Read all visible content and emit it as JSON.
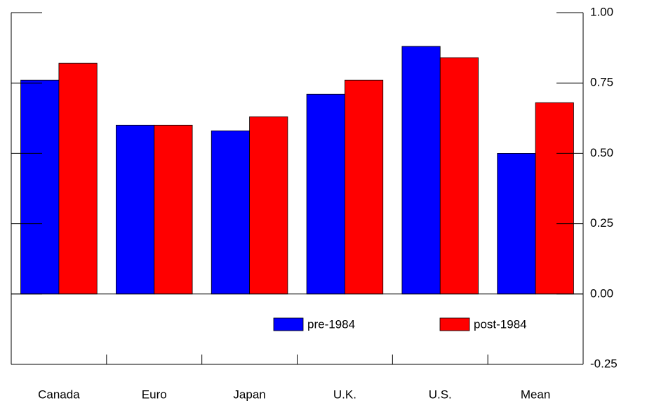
{
  "chart_data": {
    "type": "bar",
    "categories": [
      "Canada",
      "Euro",
      "Japan",
      "U.K.",
      "U.S.",
      "Mean"
    ],
    "series": [
      {
        "name": "pre-1984",
        "color": "#0000ff",
        "values": [
          0.76,
          0.6,
          0.58,
          0.71,
          0.88,
          0.5
        ]
      },
      {
        "name": "post-1984",
        "color": "#ff0000",
        "values": [
          0.82,
          0.6,
          0.63,
          0.76,
          0.84,
          0.68
        ]
      }
    ],
    "ylim": [
      -0.25,
      1.0
    ],
    "yticks": [
      {
        "value": 1.0,
        "label": "1.00"
      },
      {
        "value": 0.75,
        "label": "0.75"
      },
      {
        "value": 0.5,
        "label": "0.50"
      },
      {
        "value": 0.25,
        "label": "0.25"
      },
      {
        "value": 0.0,
        "label": "0.00"
      },
      {
        "value": -0.25,
        "label": "-0.25"
      }
    ],
    "y_axis_side": "right",
    "legend_position": "lower right"
  }
}
